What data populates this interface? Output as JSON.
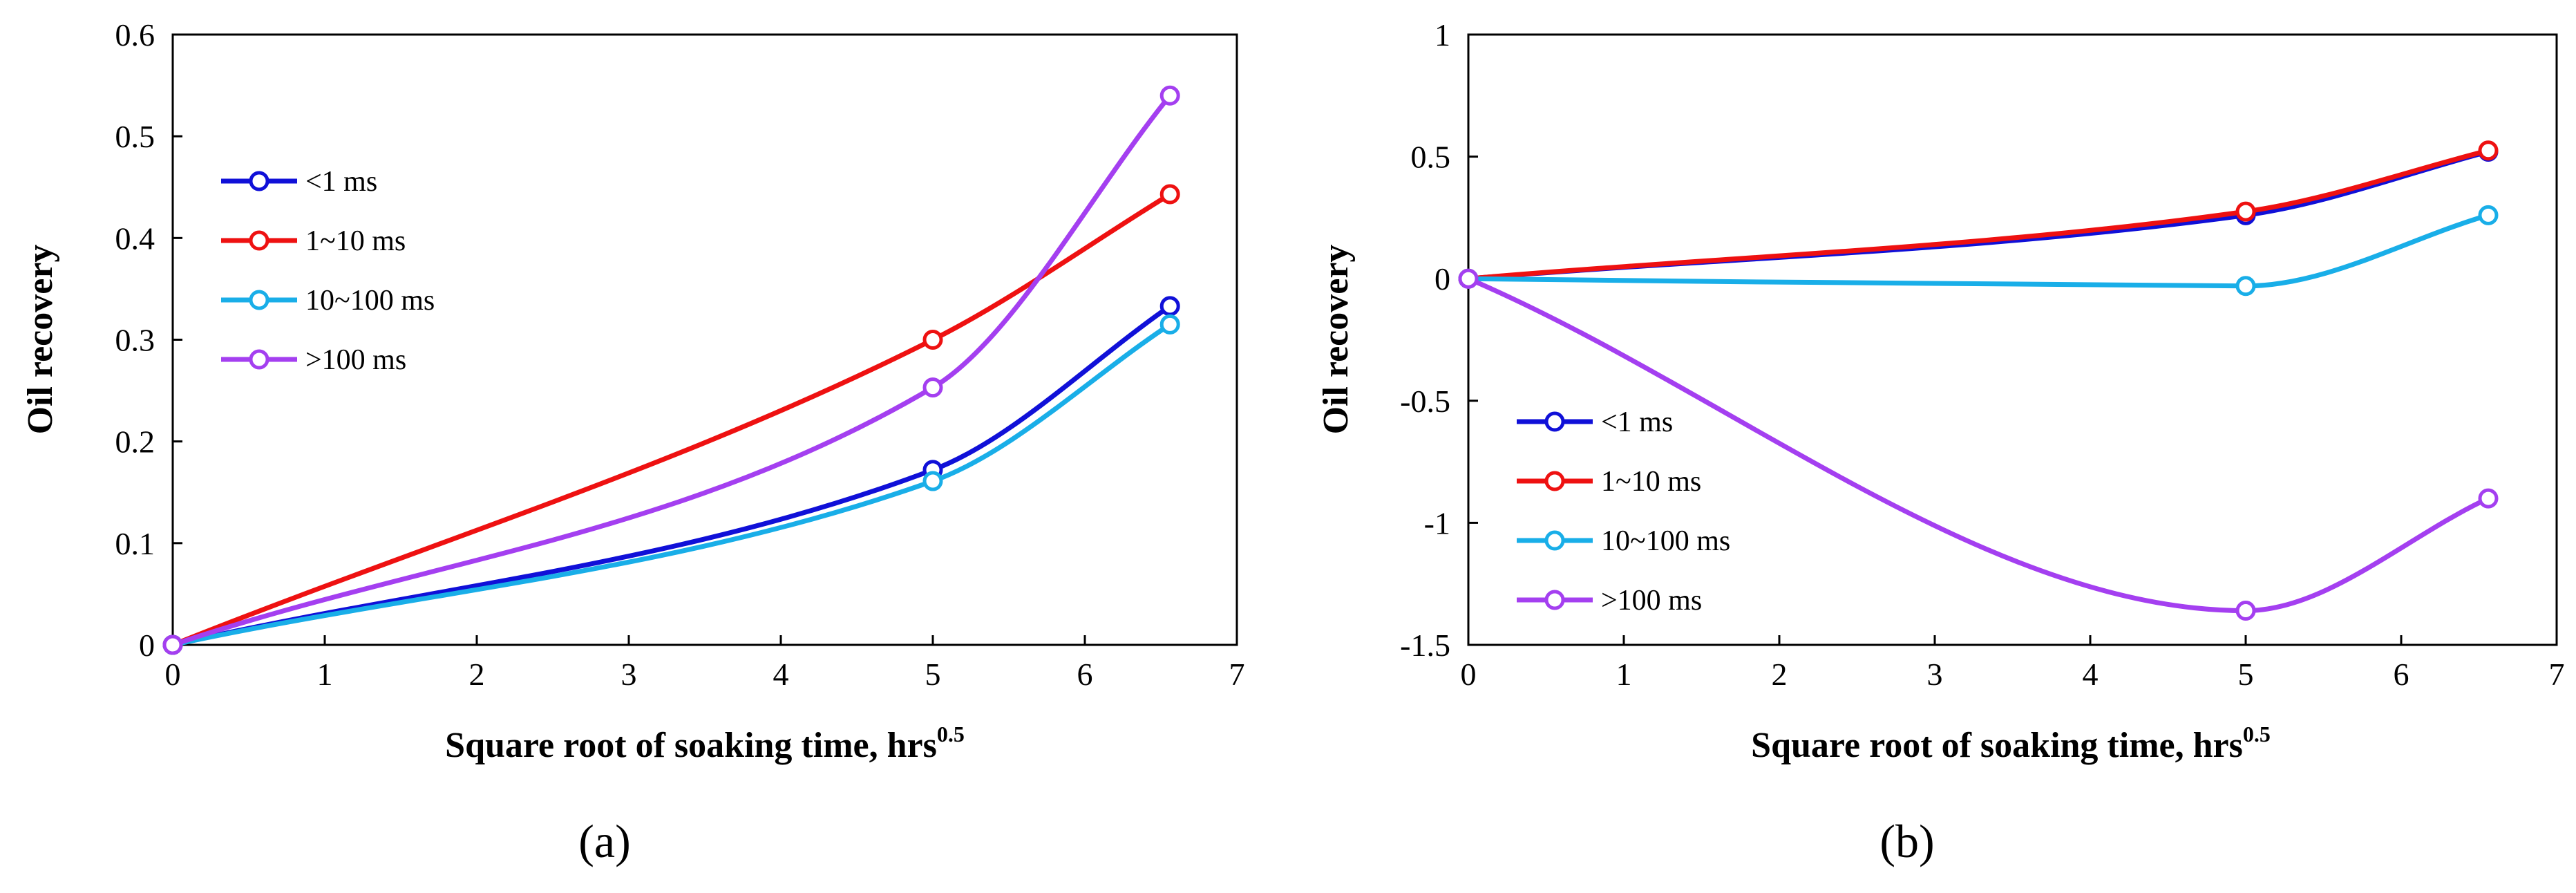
{
  "figure": {
    "panels": [
      "(a)",
      "(b)"
    ]
  },
  "chart_data": [
    {
      "type": "line",
      "panel": "(a)",
      "title": "",
      "xlabel": "Square root of soaking time, hrs",
      "xlabel_superscript": "0.5",
      "ylabel": "Oil recovery",
      "xlim": [
        0,
        7
      ],
      "ylim": [
        0,
        0.6
      ],
      "xticks": [
        "0",
        "1",
        "2",
        "3",
        "4",
        "5",
        "6",
        "7"
      ],
      "yticks": [
        "0",
        "0.1",
        "0.2",
        "0.3",
        "0.4",
        "0.5",
        "0.6"
      ],
      "legend_position": "upper-left",
      "x": [
        0,
        5,
        6.56
      ],
      "series": [
        {
          "name": "<1 ms",
          "color": "#1010d8",
          "values": [
            0,
            0.172,
            0.333
          ]
        },
        {
          "name": "1~10 ms",
          "color": "#ee1111",
          "values": [
            0,
            0.3,
            0.443
          ]
        },
        {
          "name": "10~100 ms",
          "color": "#19aee8",
          "values": [
            0,
            0.161,
            0.315
          ]
        },
        {
          "name": ">100 ms",
          "color": "#a43ff0",
          "values": [
            0,
            0.253,
            0.54
          ]
        }
      ]
    },
    {
      "type": "line",
      "panel": "(b)",
      "title": "",
      "xlabel": "Square root of soaking time, hrs",
      "xlabel_superscript": "0.5",
      "ylabel": "Oil recovery",
      "xlim": [
        0,
        7
      ],
      "ylim": [
        -1.5,
        1
      ],
      "xticks": [
        "0",
        "1",
        "2",
        "3",
        "4",
        "5",
        "6",
        "7"
      ],
      "yticks": [
        "-1.5",
        "-1",
        "-0.5",
        "0",
        "0.5",
        "1"
      ],
      "legend_position": "lower-left",
      "x": [
        0,
        5,
        6.56
      ],
      "series": [
        {
          "name": "<1 ms",
          "color": "#1010d8",
          "values": [
            0,
            0.26,
            0.52
          ]
        },
        {
          "name": "1~10 ms",
          "color": "#ee1111",
          "values": [
            0,
            0.275,
            0.525
          ]
        },
        {
          "name": "10~100 ms",
          "color": "#19aee8",
          "values": [
            0,
            -0.03,
            0.26
          ]
        },
        {
          "name": ">100 ms",
          "color": "#a43ff0",
          "values": [
            0,
            -1.36,
            -0.9
          ]
        }
      ]
    }
  ]
}
